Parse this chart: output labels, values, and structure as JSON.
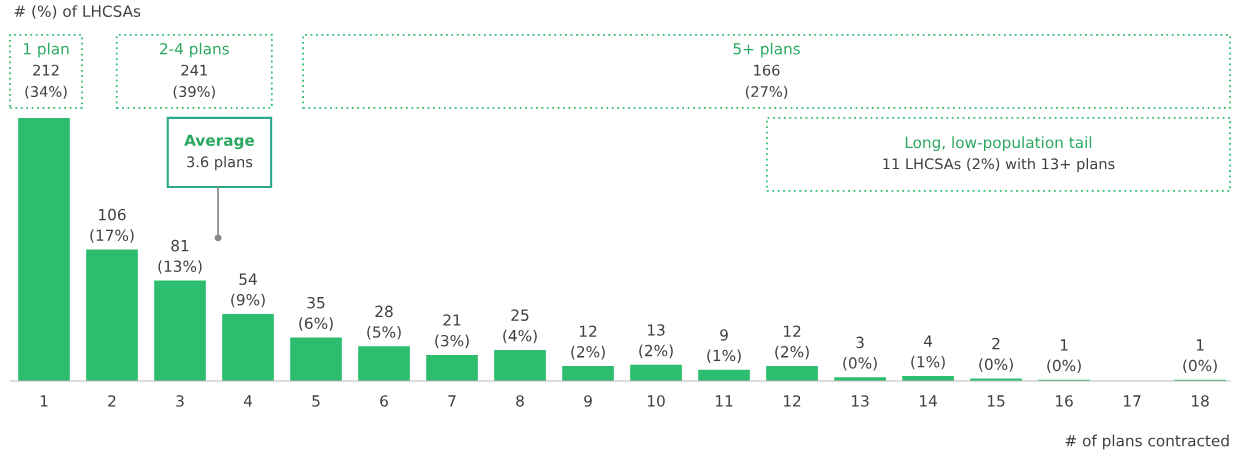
{
  "chart_data": {
    "type": "bar",
    "xlabel": "# of plans contracted",
    "categories": [
      "1",
      "2",
      "3",
      "4",
      "5",
      "6",
      "7",
      "8",
      "9",
      "10",
      "11",
      "12",
      "13",
      "14",
      "15",
      "16",
      "17",
      "18"
    ],
    "values": [
      212,
      106,
      81,
      54,
      35,
      28,
      21,
      25,
      12,
      13,
      9,
      12,
      3,
      4,
      2,
      1,
      0,
      1
    ],
    "value_labels": [
      null,
      "106\n(17%)",
      "81\n(13%)",
      "54\n(9%)",
      "35\n(6%)",
      "28\n(5%)",
      "21\n(3%)",
      "25\n(4%)",
      "12\n(2%)",
      "13\n(2%)",
      "9\n(1%)",
      "12\n(2%)",
      "3\n(0%)",
      "4\n(1%)",
      "2\n(0%)",
      "1\n(0%)",
      null,
      "1\n(0%)"
    ],
    "color": "#2dbd6e",
    "annotations": [
      "# (%) of LHCSAs",
      "1 plan\n212\n(34%)",
      "2-4 plans\n241\n(39%)",
      "5+ plans\n166\n(27%)",
      "Long, low-population tail\n11 LHCSAs (2%) with 13+ plans",
      "Average\n3.6 plans"
    ],
    "grid": false
  }
}
